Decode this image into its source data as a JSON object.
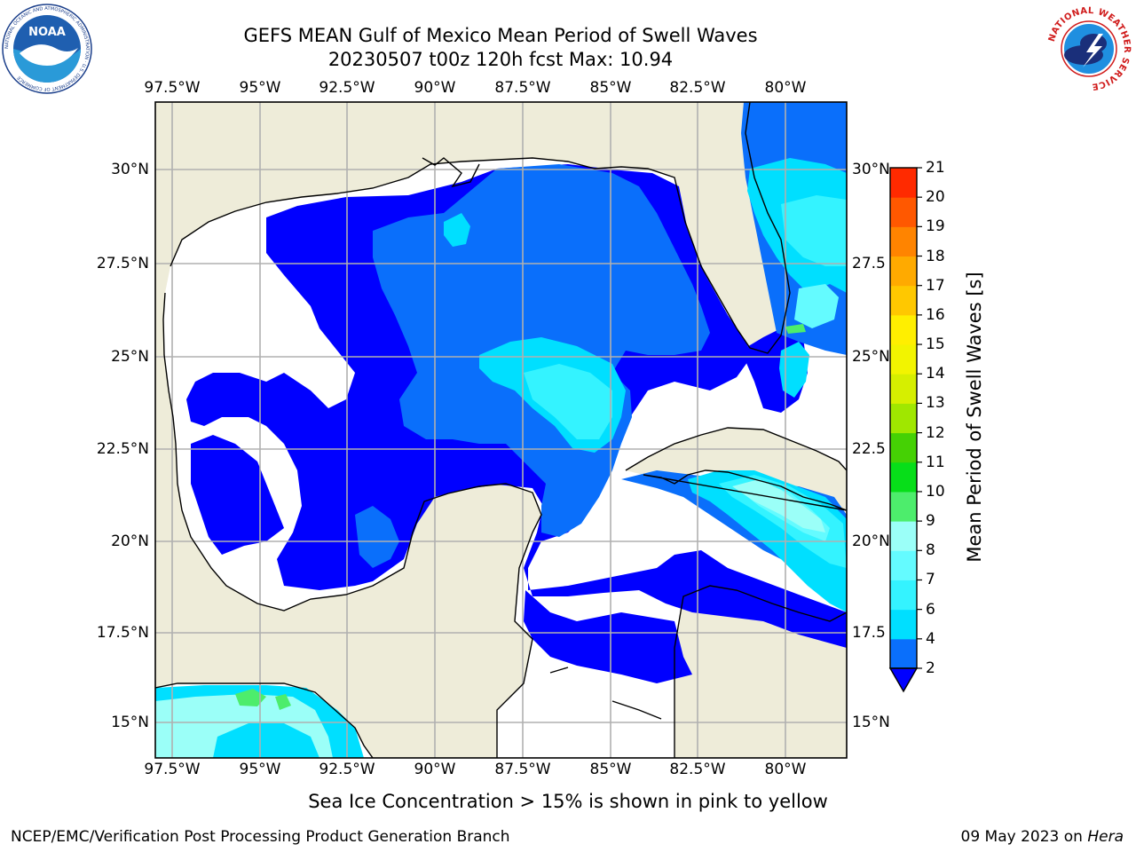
{
  "title": {
    "line1": "GEFS MEAN Gulf of Mexico Mean Period of Swell Waves",
    "line2": "20230507 t00z 120h fcst   Max: 10.94"
  },
  "map": {
    "lon_labels": [
      "97.5°W",
      "95°W",
      "92.5°W",
      "90°W",
      "87.5°W",
      "85°W",
      "82.5°W",
      "80°W"
    ],
    "lat_labels_left": [
      "30°N",
      "27.5°N",
      "25°N",
      "22.5°N",
      "20°N",
      "17.5°N",
      "15°N"
    ],
    "lat_labels_right": [
      "30°N",
      "27.5",
      "25°N",
      "22.5",
      "20°N",
      "17.5",
      "15°N"
    ],
    "land_color": "#eeecd9",
    "sea_default": "#ffffff"
  },
  "colorbar": {
    "label": "Mean Period of Swell Waves [s]",
    "ticks": [
      "2",
      "4",
      "6",
      "7",
      "8",
      "9",
      "10",
      "11",
      "12",
      "13",
      "14",
      "15",
      "16",
      "17",
      "18",
      "19",
      "20",
      "21"
    ],
    "colors": [
      "#0a6ffb",
      "#00dfff",
      "#34f3ff",
      "#64fbff",
      "#9bfff8",
      "#4ded6c",
      "#07de19",
      "#45d104",
      "#a0e700",
      "#d6ef00",
      "#f2f400",
      "#ffef00",
      "#ffc800",
      "#ffaa00",
      "#ff8400",
      "#ff5800",
      "#ff2a00"
    ],
    "under_color": "#0000ff"
  },
  "caption": "Sea Ice Concentration > 15% is shown in pink to yellow",
  "footer": {
    "left": "NCEP/EMC/Verification Post Processing Product Generation Branch",
    "right_date": "09 May 2023 on",
    "right_host": "Hera"
  },
  "logos": {
    "noaa": "NOAA",
    "noaa_ring": "NATIONAL OCEANIC AND ATMOSPHERIC ADMINISTRATION · U.S. DEPARTMENT OF COMMERCE",
    "nws_ring": "NATIONAL WEATHER SERVICE"
  }
}
